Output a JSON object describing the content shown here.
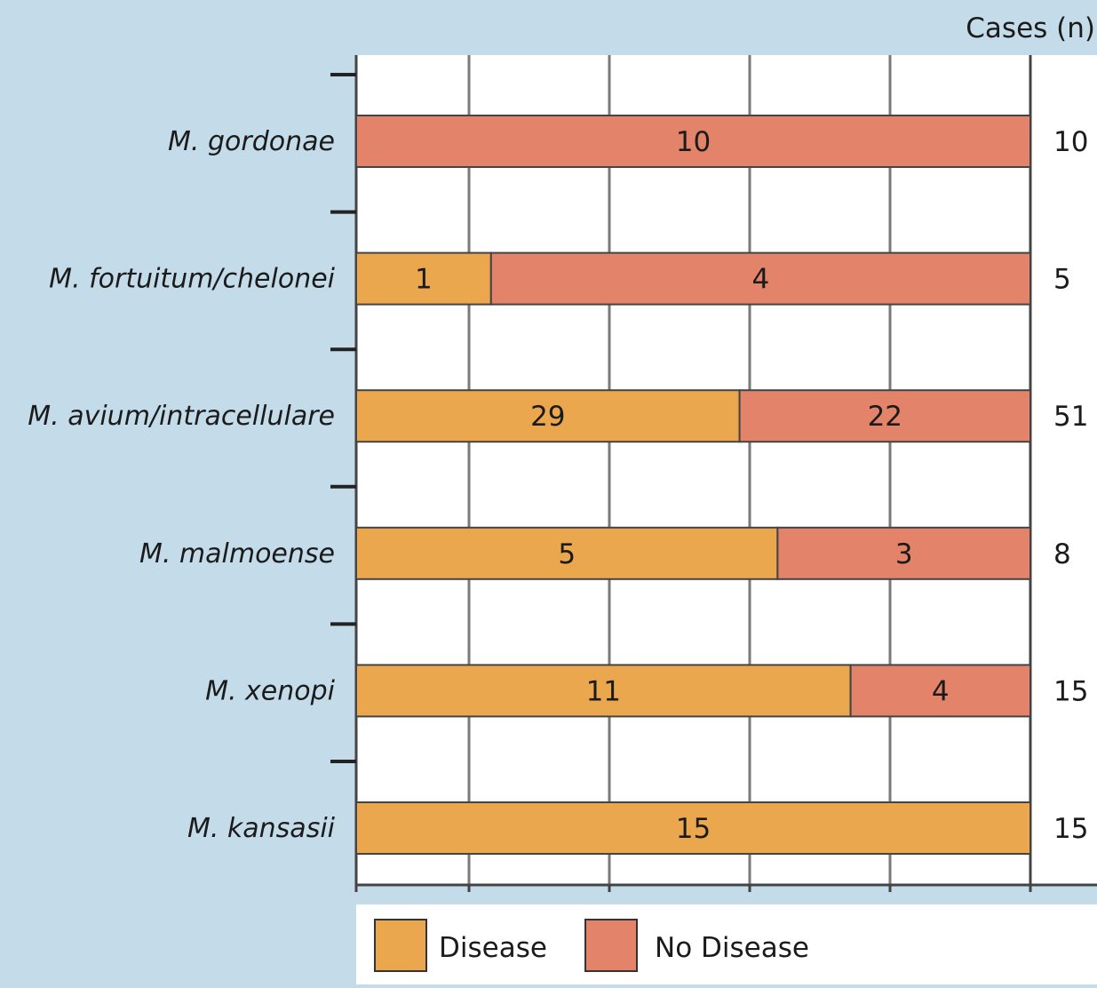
{
  "chart_data": {
    "type": "bar",
    "orientation": "horizontal",
    "stacked": true,
    "categories": [
      "M. gordonae",
      "M. fortuitum/chelonei",
      "M. avium/intracellulare",
      "M. malmoense",
      "M. xenopi",
      "M. kansasii"
    ],
    "series": [
      {
        "name": "Disease",
        "color": "#eba74e",
        "values": [
          0,
          1,
          29,
          5,
          11,
          15
        ]
      },
      {
        "name": "No Disease",
        "color": "#e3836a",
        "values": [
          10,
          4,
          22,
          3,
          4,
          0
        ]
      }
    ],
    "bar_labels": {
      "Disease": [
        "",
        "1",
        "29",
        "5",
        "11",
        "15"
      ],
      "No Disease": [
        "10",
        "4",
        "22",
        "3",
        "4",
        ""
      ]
    },
    "totals_header": "Cases (n)",
    "totals": [
      "10",
      "5",
      "51",
      "8",
      "15",
      "15"
    ],
    "xlim": [
      0,
      100
    ],
    "grid": true,
    "legend_position": "bottom"
  },
  "colors": {
    "background": "#c4dce9",
    "plot_background": "#ffffff",
    "grid": "#7a7a7a",
    "disease": "#eba74e",
    "no_disease": "#e3836a"
  }
}
